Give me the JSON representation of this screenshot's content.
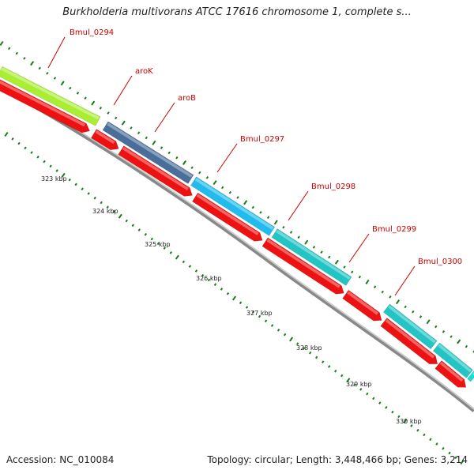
{
  "title": "Burkholderia multivorans ATCC 17616 chromosome 1, complete s...",
  "footer": {
    "accession": "Accession: NC_010084",
    "summary": "Topology: circular; Length: 3,448,466 bp; Genes: 3,214"
  },
  "colors": {
    "gene_label": "#cc0000",
    "tick_mark": "#1a7a1a",
    "backbone": "#888888",
    "cds_red": "#ee1111",
    "gene_lime": "#aaee33",
    "gene_steel": "#4a6e9a",
    "gene_sky": "#22bbee",
    "gene_teal": "#22c4c4",
    "gene_cyan": "#11dddd"
  },
  "genes": [
    {
      "name": "Bmul_0294",
      "color": "lime"
    },
    {
      "name": "aroK",
      "color": "steel"
    },
    {
      "name": "aroB",
      "color": "steel"
    },
    {
      "name": "Bmul_0297",
      "color": "sky"
    },
    {
      "name": "Bmul_0298",
      "color": "teal"
    },
    {
      "name": "Bmul_0299",
      "color": "teal"
    },
    {
      "name": "Bmul_0300",
      "color": "teal"
    }
  ],
  "scale_labels": [
    "323 kbp",
    "324 kbp",
    "325 kbp",
    "326 kbp",
    "327 kbp",
    "328 kbp",
    "329 kbp",
    "330 kbp"
  ]
}
